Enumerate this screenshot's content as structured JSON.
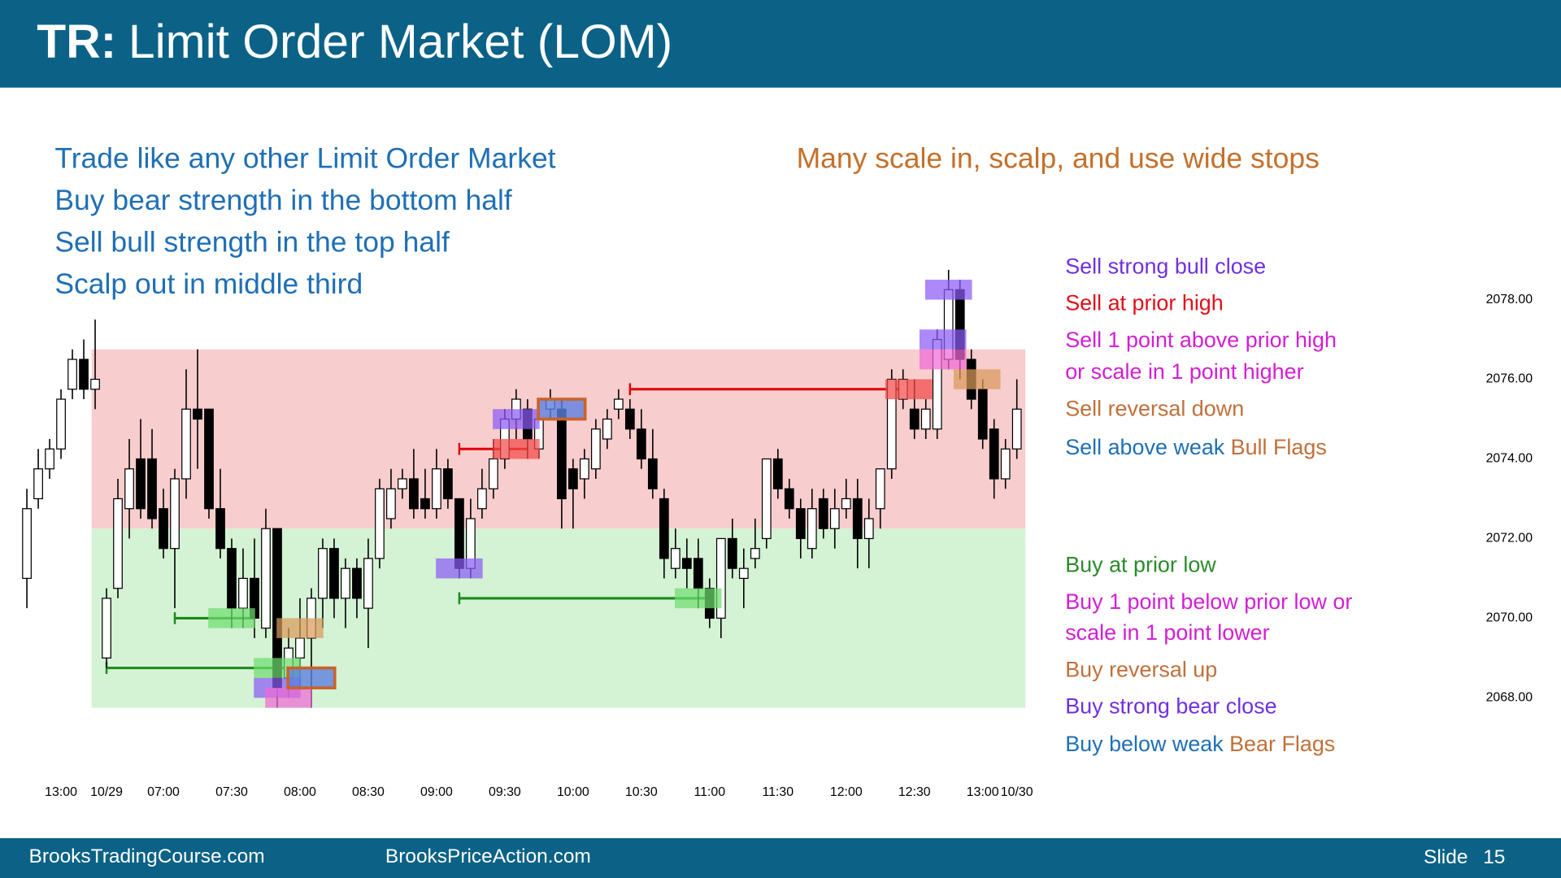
{
  "header": {
    "prefix": "TR:",
    "title": "Limit Order Market (LOM)"
  },
  "notes": {
    "left": [
      "Trade like any other Limit Order Market",
      "Buy bear strength in the bottom half",
      "Sell bull strength in the top half",
      "Scalp out in middle third"
    ],
    "right": "Many scale in, scalp, and use wide stops"
  },
  "legend": [
    {
      "parts": [
        {
          "text": "Sell strong bull close",
          "color": "#7030e0"
        }
      ]
    },
    {
      "parts": [
        {
          "text": "Sell at prior high",
          "color": "#e0101a"
        }
      ]
    },
    {
      "parts": [
        {
          "text": "Sell 1 point above prior high",
          "color": "#d21fd2"
        }
      ]
    },
    {
      "parts": [
        {
          "text": "or scale in 1 point higher",
          "color": "#d21fd2"
        }
      ]
    },
    {
      "parts": [
        {
          "text": "Sell reversal down",
          "color": "#c0703a"
        }
      ]
    },
    {
      "parts": [
        {
          "text": "Sell above weak",
          "color": "#1f6fb5"
        },
        {
          "text": "Bull Flags",
          "color": "#c0703a"
        }
      ]
    },
    {
      "parts": [
        {
          "text": "Buy at prior low",
          "color": "#2a8a2a"
        }
      ]
    },
    {
      "parts": [
        {
          "text": "Buy 1 point below prior low or",
          "color": "#d21fd2"
        }
      ]
    },
    {
      "parts": [
        {
          "text": "scale in 1 point lower",
          "color": "#d21fd2"
        }
      ]
    },
    {
      "parts": [
        {
          "text": "Buy reversal up",
          "color": "#c0703a"
        }
      ]
    },
    {
      "parts": [
        {
          "text": "Buy strong bear close",
          "color": "#7030e0"
        }
      ]
    },
    {
      "parts": [
        {
          "text": "Buy below weak",
          "color": "#1f6fb5"
        },
        {
          "text": "Bear Flags",
          "color": "#c0703a"
        }
      ]
    }
  ],
  "footer": {
    "left": "BrooksTradingCourse.com",
    "center": "BrooksPriceAction.com",
    "slide": "Slide",
    "number": "15"
  },
  "chart_data": {
    "type": "candlestick",
    "bull_color": "#ffffff",
    "bear_color": "#000000",
    "categories": [
      null,
      null,
      null,
      "13:00",
      null,
      null,
      null,
      "10/29",
      null,
      null,
      null,
      null,
      "07:00",
      null,
      null,
      null,
      null,
      null,
      "07:30",
      null,
      null,
      null,
      null,
      null,
      "08:00",
      null,
      null,
      null,
      null,
      null,
      "08:30",
      null,
      null,
      null,
      null,
      null,
      "09:00",
      null,
      null,
      null,
      null,
      null,
      "09:30",
      null,
      null,
      null,
      null,
      null,
      "10:00",
      null,
      null,
      null,
      null,
      null,
      "10:30",
      null,
      null,
      null,
      null,
      null,
      "11:00",
      null,
      null,
      null,
      null,
      null,
      "11:30",
      null,
      null,
      null,
      null,
      null,
      "12:00",
      null,
      null,
      null,
      null,
      null,
      "12:30",
      null,
      null,
      null,
      null,
      null,
      "13:00",
      null,
      null,
      "10/30"
    ],
    "open": [
      2071.0,
      2073.0,
      2073.75,
      2074.25,
      2075.75,
      2076.5,
      2075.75,
      2069.0,
      2070.75,
      2072.75,
      2074.0,
      2074.0,
      2072.75,
      2071.75,
      2073.5,
      2075.25,
      2075.25,
      2072.75,
      2071.75,
      2070.25,
      2071.0,
      2069.75,
      2072.25,
      2068.5,
      2069.0,
      2069.5,
      2070.5,
      2071.75,
      2070.5,
      2071.25,
      2070.25,
      2071.5,
      2072.5,
      2073.25,
      2073.5,
      2073.0,
      2072.75,
      2073.75,
      2073.0,
      2071.25,
      2072.75,
      2073.25,
      2074.0,
      2075.0,
      2075.25,
      2074.25,
      2075.25,
      2075.25,
      2073.75,
      2073.5,
      2073.75,
      2074.5,
      2075.25,
      2075.25,
      2074.75,
      2074.0,
      2073.0,
      2071.25,
      2071.5,
      2071.5,
      2070.75,
      2070.0,
      2072.0,
      2071.0,
      2071.5,
      2072.0,
      2074.0,
      2073.25,
      2072.75,
      2071.75,
      2073.0,
      2072.25,
      2072.75,
      2073.0,
      2072.0,
      2072.75,
      2073.75,
      2075.5,
      2075.25,
      2074.75,
      2074.75,
      2076.5,
      2078.25,
      2076.5,
      2075.75,
      2074.75,
      2073.5,
      2074.25
    ],
    "high": [
      2073.25,
      2074.25,
      2074.5,
      2075.75,
      2076.75,
      2077.0,
      2077.5,
      2070.75,
      2073.5,
      2074.5,
      2075.0,
      2074.75,
      2073.25,
      2073.75,
      2076.25,
      2076.75,
      2075.25,
      2073.75,
      2072.0,
      2071.75,
      2072.0,
      2072.75,
      2072.25,
      2069.75,
      2070.5,
      2070.75,
      2072.0,
      2072.0,
      2071.5,
      2071.5,
      2072.0,
      2073.5,
      2073.75,
      2073.75,
      2074.25,
      2073.75,
      2074.25,
      2074.0,
      2073.0,
      2073.0,
      2073.75,
      2074.5,
      2075.25,
      2075.75,
      2075.5,
      2075.5,
      2075.75,
      2075.5,
      2074.0,
      2074.25,
      2075.0,
      2075.25,
      2075.75,
      2075.5,
      2075.25,
      2074.75,
      2073.25,
      2072.25,
      2072.0,
      2072.0,
      2071.0,
      2072.0,
      2072.5,
      2071.75,
      2072.5,
      2074.0,
      2074.25,
      2073.5,
      2073.0,
      2073.25,
      2073.25,
      2073.25,
      2073.5,
      2073.5,
      2073.0,
      2073.75,
      2076.25,
      2076.25,
      2076.0,
      2075.5,
      2077.25,
      2078.75,
      2078.5,
      2076.75,
      2076.0,
      2075.0,
      2074.5,
      2076.0
    ],
    "low": [
      2070.25,
      2072.75,
      2073.5,
      2074.0,
      2075.5,
      2075.5,
      2075.25,
      2068.75,
      2070.5,
      2072.0,
      2072.5,
      2072.25,
      2071.5,
      2070.25,
      2073.0,
      2073.75,
      2072.5,
      2071.5,
      2069.75,
      2069.75,
      2069.5,
      2069.5,
      2067.75,
      2068.0,
      2068.25,
      2067.75,
      2069.75,
      2070.0,
      2069.75,
      2070.0,
      2069.25,
      2071.25,
      2072.25,
      2073.0,
      2072.5,
      2072.5,
      2072.5,
      2072.75,
      2071.0,
      2071.0,
      2072.5,
      2073.0,
      2073.75,
      2074.5,
      2074.0,
      2074.0,
      2075.0,
      2072.25,
      2072.25,
      2073.0,
      2073.5,
      2074.25,
      2075.0,
      2074.5,
      2073.75,
      2073.0,
      2071.0,
      2071.0,
      2070.75,
      2070.25,
      2069.75,
      2069.5,
      2071.0,
      2070.25,
      2071.25,
      2071.75,
      2073.0,
      2072.5,
      2071.5,
      2071.5,
      2072.0,
      2071.75,
      2072.5,
      2071.25,
      2071.25,
      2072.25,
      2073.5,
      2075.25,
      2074.5,
      2074.5,
      2074.5,
      2076.25,
      2076.0,
      2075.25,
      2074.25,
      2073.0,
      2073.25,
      2074.0
    ],
    "close": [
      2072.75,
      2073.75,
      2074.25,
      2075.5,
      2076.5,
      2075.75,
      2076.0,
      2070.5,
      2073.0,
      2073.75,
      2072.75,
      2072.5,
      2071.75,
      2073.5,
      2075.25,
      2075.0,
      2072.75,
      2071.75,
      2070.25,
      2071.0,
      2070.0,
      2072.25,
      2068.25,
      2069.25,
      2069.5,
      2070.5,
      2071.75,
      2070.5,
      2071.25,
      2070.5,
      2071.5,
      2073.25,
      2073.25,
      2073.5,
      2072.75,
      2072.75,
      2073.75,
      2073.0,
      2071.25,
      2072.5,
      2073.25,
      2074.0,
      2075.0,
      2075.5,
      2074.5,
      2075.0,
      2075.5,
      2073.0,
      2073.25,
      2074.0,
      2074.75,
      2075.0,
      2075.5,
      2074.75,
      2074.0,
      2073.25,
      2071.5,
      2071.75,
      2071.25,
      2070.75,
      2070.0,
      2072.0,
      2071.25,
      2071.25,
      2071.75,
      2074.0,
      2073.25,
      2072.75,
      2072.0,
      2072.75,
      2072.25,
      2072.75,
      2073.0,
      2072.0,
      2072.5,
      2073.75,
      2076.0,
      2076.0,
      2074.75,
      2075.25,
      2077.0,
      2078.25,
      2076.5,
      2075.5,
      2074.5,
      2073.5,
      2074.25,
      2075.25
    ],
    "ylim": [
      2067,
      2079
    ],
    "yticks": [
      {
        "value": 2068,
        "label": "2068.00"
      },
      {
        "value": 2070,
        "label": "2070.00"
      },
      {
        "value": 2072,
        "label": "2072.00"
      },
      {
        "value": 2074,
        "label": "2074.00"
      },
      {
        "value": 2076,
        "label": "2076.00"
      },
      {
        "value": 2078,
        "label": "2078.00"
      }
    ],
    "zones": [
      {
        "from": 2072.25,
        "to": 2076.75,
        "color": "#f8cdcd"
      },
      {
        "from": 2067.75,
        "to": 2072.25,
        "color": "#d4f2d4"
      }
    ],
    "levels": [
      {
        "price": 2075.75,
        "start": 53,
        "end": 77,
        "color": "#e00000"
      },
      {
        "price": 2074.25,
        "start": 38,
        "end": 44,
        "color": "#e00000"
      },
      {
        "price": 2070.0,
        "start": 13,
        "end": 20,
        "color": "#1a8a1a"
      },
      {
        "price": 2068.75,
        "start": 7,
        "end": 24,
        "color": "#1a8a1a"
      },
      {
        "price": 2070.5,
        "start": 38,
        "end": 60,
        "color": "#1a8a1a"
      }
    ],
    "highlights": [
      {
        "center": 81,
        "hi": 2078.5,
        "lo": 2078.0,
        "color": "#8b5cf6"
      },
      {
        "center": 80.5,
        "hi": 2077.25,
        "lo": 2076.75,
        "color": "#8b5cf6"
      },
      {
        "center": 80.5,
        "hi": 2076.75,
        "lo": 2076.25,
        "color": "#f06ad6"
      },
      {
        "center": 83.5,
        "hi": 2076.25,
        "lo": 2075.75,
        "color": "#d99a5c"
      },
      {
        "center": 77.5,
        "hi": 2076.0,
        "lo": 2075.5,
        "color": "#f44a4a"
      },
      {
        "center": 43,
        "hi": 2075.25,
        "lo": 2074.75,
        "color": "#8b5cf6"
      },
      {
        "center": 43,
        "hi": 2074.5,
        "lo": 2074.0,
        "color": "#f44a4a"
      },
      {
        "center": 47,
        "hi": 2075.5,
        "lo": 2075.0,
        "color": "#5b7fe0",
        "border": "#c8642a"
      },
      {
        "center": 38,
        "hi": 2071.5,
        "lo": 2071.0,
        "color": "#8b5cf6"
      },
      {
        "center": 59,
        "hi": 2070.75,
        "lo": 2070.25,
        "color": "#6fdc6f"
      },
      {
        "center": 18,
        "hi": 2070.25,
        "lo": 2069.75,
        "color": "#6fdc6f"
      },
      {
        "center": 24,
        "hi": 2070.0,
        "lo": 2069.5,
        "color": "#d99a5c"
      },
      {
        "center": 22,
        "hi": 2069.0,
        "lo": 2068.5,
        "color": "#6fdc6f"
      },
      {
        "center": 22,
        "hi": 2068.5,
        "lo": 2068.0,
        "color": "#8b5cf6"
      },
      {
        "center": 23,
        "hi": 2068.25,
        "lo": 2067.75,
        "color": "#f06ad6"
      },
      {
        "center": 25,
        "hi": 2068.75,
        "lo": 2068.25,
        "color": "#5b7fe0",
        "border": "#c8642a"
      }
    ]
  }
}
